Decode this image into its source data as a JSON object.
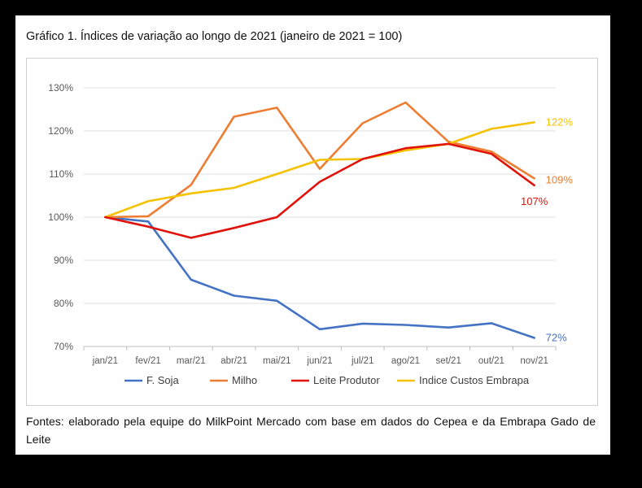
{
  "figure": {
    "title": "Gráfico 1. Índices de variação ao longo de 2021 (janeiro de 2021 = 100)",
    "source": "Fontes: elaborado pela equipe do MilkPoint Mercado com base em dados do Cepea e da Embrapa Gado de Leite"
  },
  "chart_data": {
    "type": "line",
    "title": "Gráfico 1. Índices de variação ao longo de 2021 (janeiro de 2021 = 100)",
    "xlabel": "",
    "ylabel": "",
    "x": [
      "jan/21",
      "fev/21",
      "mar/21",
      "abr/21",
      "mai/21",
      "jun/21",
      "jul/21",
      "ago/21",
      "set/21",
      "out/21",
      "nov/21"
    ],
    "ylim": [
      70,
      130
    ],
    "yticks": [
      70,
      80,
      90,
      100,
      110,
      120,
      130
    ],
    "ytick_labels": [
      "70%",
      "80%",
      "90%",
      "100%",
      "110%",
      "120%",
      "130%"
    ],
    "grid": true,
    "legend": "bottom",
    "series": [
      {
        "name": "F. Soja",
        "color": "#4472c4",
        "values": [
          100,
          99,
          85.5,
          81.8,
          80.6,
          74,
          75.3,
          75,
          74.4,
          75.4,
          72
        ],
        "end_label": "72%"
      },
      {
        "name": "Milho",
        "color": "#ed7d31",
        "values": [
          100,
          100.2,
          107.5,
          123.3,
          125.4,
          111.2,
          121.8,
          126.6,
          117.5,
          115.2,
          109
        ],
        "end_label": "109%"
      },
      {
        "name": "Leite Produtor",
        "color": "#e0120a",
        "values": [
          100,
          97.8,
          95.2,
          97.5,
          100,
          108.2,
          113.5,
          116,
          117,
          114.7,
          107.4
        ],
        "end_label": "107%"
      },
      {
        "name": "Indice Custos Embrapa",
        "color": "#f5c200",
        "values": [
          100,
          103.7,
          105.5,
          106.8,
          110,
          113.3,
          113.5,
          115.5,
          117,
          120.5,
          122
        ],
        "end_label": "122%"
      }
    ]
  }
}
